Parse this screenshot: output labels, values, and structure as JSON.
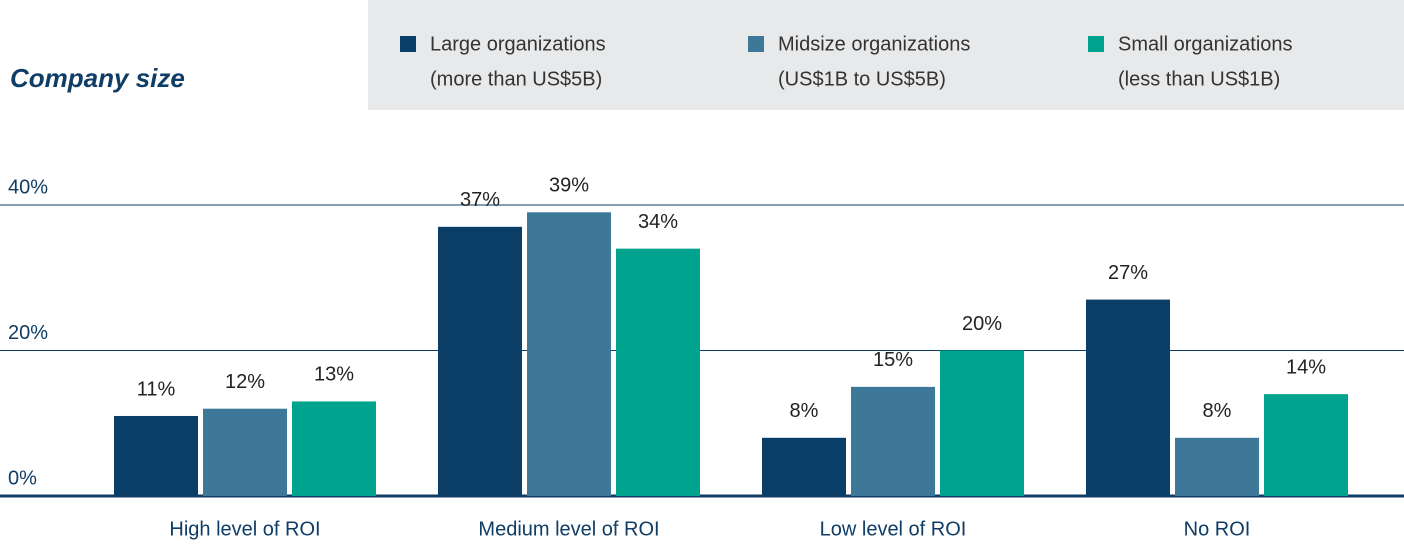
{
  "chart_data": {
    "type": "bar",
    "title": "Company size",
    "categories": [
      "High level of ROI",
      "Medium level of ROI",
      "Low level of ROI",
      "No ROI"
    ],
    "series": [
      {
        "name": "Large organizations",
        "note": "(more than US$5B)",
        "color": "#0b3e66",
        "values": [
          11,
          37,
          8,
          27
        ],
        "value_labels": [
          "11%",
          "37%",
          "8%",
          "27%"
        ]
      },
      {
        "name": "Midsize organizations",
        "note": "(US$1B to US$5B)",
        "color": "#3d7899",
        "values": [
          12,
          39,
          15,
          8
        ],
        "value_labels": [
          "12%",
          "39%",
          "15%",
          "8%"
        ]
      },
      {
        "name": "Small organizations",
        "note": "(less than US$1B)",
        "color": "#00a38e",
        "values": [
          13,
          34,
          20,
          14
        ],
        "value_labels": [
          "13%",
          "34%",
          "20%",
          "14%"
        ]
      }
    ],
    "ylim": [
      0,
      40
    ],
    "yticks": [
      {
        "value": 0,
        "label": "0%"
      },
      {
        "value": 20,
        "label": "20%"
      },
      {
        "value": 40,
        "label": "40%"
      }
    ],
    "grid": true
  }
}
